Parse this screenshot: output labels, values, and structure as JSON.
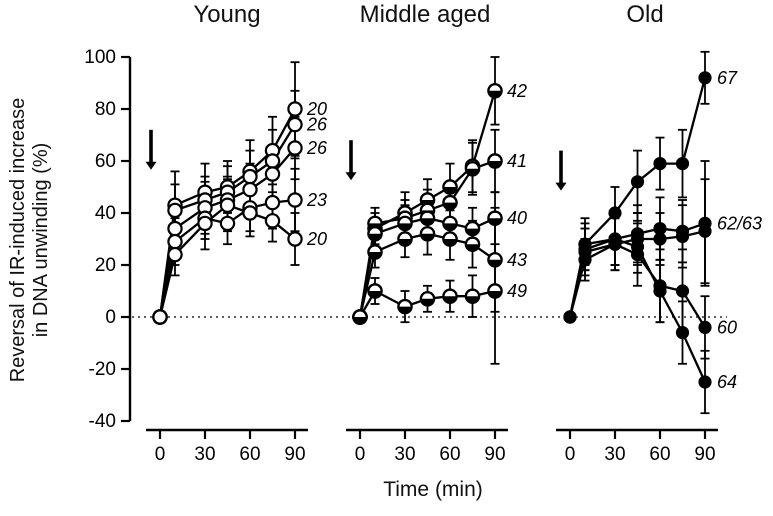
{
  "figure": {
    "ylabel_line1": "Reversal of IR-induced increase",
    "ylabel_line2": "in DNA unwinding (%)",
    "xlabel": "Time (min)"
  },
  "chart_data": {
    "type": "line",
    "title": "",
    "xlabel": "Time (min)",
    "ylabel": "Reversal of IR-induced increase in DNA unwinding (%)",
    "x": [
      0,
      10,
      30,
      45,
      60,
      75,
      90
    ],
    "x_ticks": [
      0,
      30,
      60,
      90
    ],
    "y_ticks": [
      -40,
      -20,
      0,
      20,
      40,
      60,
      80,
      100
    ],
    "ylim": [
      -40,
      100
    ],
    "zero_line_dotted": true,
    "legend_position": "none",
    "panels": [
      {
        "title": "Young",
        "marker": "open",
        "arrow": {
          "y_from": 72,
          "y_to": 57
        },
        "series": [
          {
            "label": "20",
            "y": [
              0,
              43,
              48,
              50,
              56,
              64,
              80
            ],
            "err": [
              0,
              13,
              11,
              10,
              12,
              13,
              18
            ]
          },
          {
            "label": "26",
            "y": [
              0,
              41,
              45,
              48,
              54,
              60,
              74
            ],
            "err": [
              0,
              10,
              9,
              10,
              10,
              12,
              13
            ]
          },
          {
            "label": "26",
            "y": [
              0,
              34,
              42,
              45,
              49,
              55,
              65
            ],
            "err": [
              0,
              9,
              10,
              9,
              10,
              10,
              12
            ]
          },
          {
            "label": "23",
            "y": [
              0,
              29,
              38,
              36,
              42,
              44,
              45
            ],
            "err": [
              0,
              9,
              8,
              8,
              9,
              10,
              12
            ]
          },
          {
            "label": "20",
            "y": [
              0,
              24,
              36,
              43,
              40,
              37,
              30
            ],
            "err": [
              0,
              8,
              10,
              10,
              9,
              8,
              10
            ]
          }
        ]
      },
      {
        "title": "Middle aged",
        "marker": "half",
        "arrow": {
          "y_from": 68,
          "y_to": 53
        },
        "series": [
          {
            "label": "42",
            "y": [
              0,
              34,
              40,
              45,
              50,
              58,
              87
            ],
            "err": [
              0,
              6,
              8,
              8,
              9,
              10,
              13
            ]
          },
          {
            "label": "41",
            "y": [
              0,
              36,
              38,
              41,
              44,
              57,
              60
            ],
            "err": [
              0,
              6,
              7,
              8,
              8,
              10,
              12
            ]
          },
          {
            "label": "40",
            "y": [
              0,
              32,
              36,
              38,
              36,
              34,
              38
            ],
            "err": [
              0,
              6,
              7,
              8,
              8,
              8,
              10
            ]
          },
          {
            "label": "43",
            "y": [
              0,
              25,
              30,
              32,
              30,
              28,
              22
            ],
            "err": [
              0,
              6,
              7,
              8,
              8,
              9,
              20
            ]
          },
          {
            "label": "49",
            "y": [
              0,
              10,
              4,
              7,
              8,
              8,
              10
            ],
            "err": [
              0,
              5,
              6,
              5,
              6,
              8,
              28
            ]
          }
        ]
      },
      {
        "title": "Old",
        "marker": "filled",
        "arrow": {
          "y_from": 64,
          "y_to": 49
        },
        "series": [
          {
            "label": "67",
            "y": [
              0,
              28,
              40,
              52,
              59,
              59,
              92
            ],
            "err": [
              0,
              8,
              10,
              12,
              10,
              13,
              10
            ]
          },
          {
            "label": "62/63",
            "y": [
              0,
              28,
              30,
              32,
              34,
              33,
              36
            ],
            "err": [
              0,
              10,
              10,
              11,
              12,
              12,
              24
            ]
          },
          {
            "label": "",
            "y": [
              0,
              25,
              28,
              30,
              30,
              31,
              33
            ],
            "err": [
              0,
              9,
              10,
              10,
              10,
              12,
              20
            ]
          },
          {
            "label": "60",
            "y": [
              0,
              22,
              28,
              24,
              12,
              10,
              -4
            ],
            "err": [
              0,
              8,
              10,
              12,
              14,
              16,
              12
            ]
          },
          {
            "label": "64",
            "y": [
              0,
              26,
              30,
              27,
              10,
              -6,
              -25
            ],
            "err": [
              0,
              8,
              10,
              10,
              12,
              12,
              12
            ]
          }
        ]
      }
    ]
  }
}
